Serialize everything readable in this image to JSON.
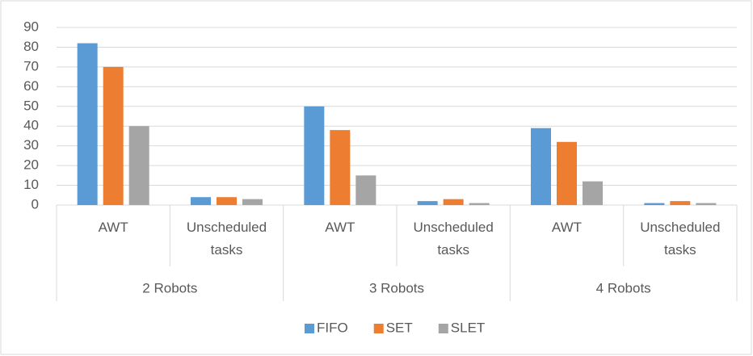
{
  "chart_data": {
    "type": "bar",
    "groups": [
      "2 Robots",
      "3 Robots",
      "4 Robots"
    ],
    "categories": [
      "AWT",
      "Unscheduled tasks",
      "AWT",
      "Unscheduled tasks",
      "AWT",
      "Unscheduled tasks"
    ],
    "series": [
      {
        "name": "FIFO",
        "color": "#5b9bd5",
        "values": [
          82,
          4,
          50,
          2,
          39,
          1
        ]
      },
      {
        "name": "SET",
        "color": "#ed7d31",
        "values": [
          70,
          4,
          38,
          3,
          32,
          2
        ]
      },
      {
        "name": "SLET",
        "color": "#a5a5a5",
        "values": [
          40,
          3,
          15,
          1,
          12,
          1
        ]
      }
    ],
    "ylim": [
      0,
      90
    ],
    "yticks": [
      0,
      10,
      20,
      30,
      40,
      50,
      60,
      70,
      80,
      90
    ],
    "grid": true,
    "legend": "bottom"
  }
}
